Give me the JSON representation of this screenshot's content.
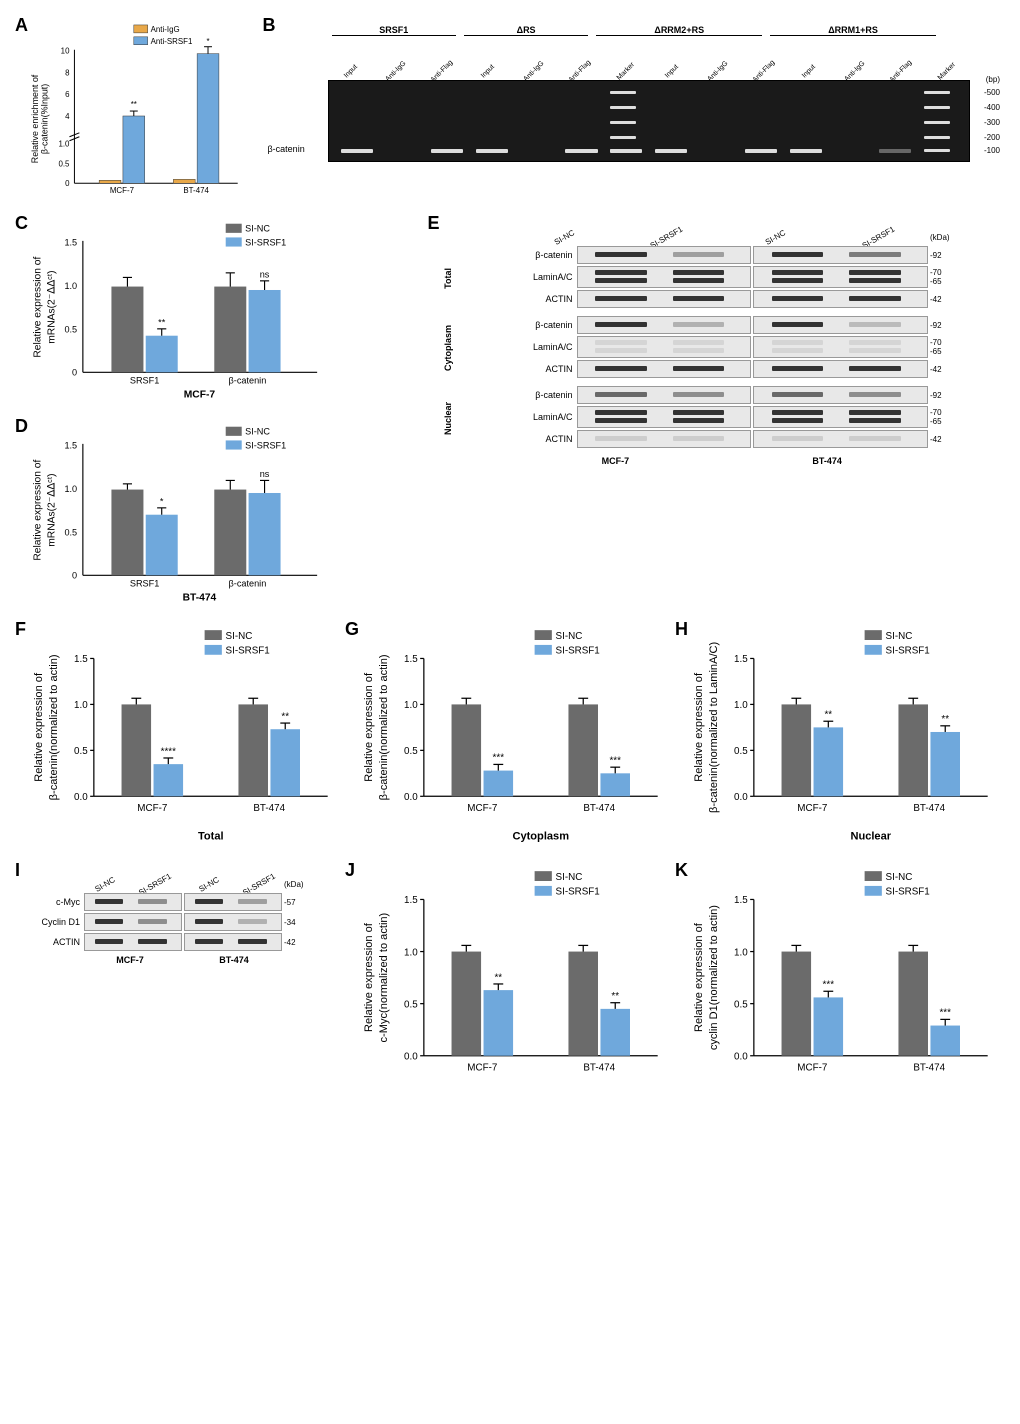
{
  "colors": {
    "orange": "#e8a849",
    "blue": "#6fa8dc",
    "gray": "#6b6b6b",
    "darkblue": "#5b9bd5"
  },
  "panelA": {
    "label": "A",
    "ylabel": "Relative enrichment of\nβ-catenin(%Input)",
    "legend": [
      "Anti-IgG",
      "Anti-SRSF1"
    ],
    "categories": [
      "MCF-7",
      "BT-474"
    ],
    "igg": [
      0.08,
      0.12
    ],
    "srsf1": [
      4.2,
      9.8
    ],
    "srsf1_err": [
      0.3,
      1.2
    ],
    "sig": [
      "**",
      "*"
    ],
    "ylim": 10,
    "break_low": 1.0,
    "break_high": 4.0
  },
  "panelB": {
    "label": "B",
    "groups": [
      "SRSF1",
      "ΔRS",
      "ΔRRM2+RS",
      "ΔRRM1+RS"
    ],
    "lanes": [
      "Input",
      "Anti-IgG",
      "Anti-Flag"
    ],
    "target": "β-catenin",
    "ladder": [
      "500",
      "400",
      "300",
      "200",
      "100"
    ],
    "unit": "(bp)"
  },
  "panelC": {
    "label": "C",
    "ylabel": "Relative expression of\nmRNAs(2^-ΔΔct)",
    "title": "MCF-7",
    "legend": [
      "SI-NC",
      "SI-SRSF1"
    ],
    "categories": [
      "SRSF1",
      "β-catenin"
    ],
    "nc": [
      1.0,
      1.0
    ],
    "si": [
      0.42,
      0.95
    ],
    "sig": [
      "**",
      "ns"
    ],
    "ylim": 1.5
  },
  "panelD": {
    "label": "D",
    "ylabel": "Relative expression of\nmRNAs(2^-ΔΔct)",
    "title": "BT-474",
    "legend": [
      "SI-NC",
      "SI-SRSF1"
    ],
    "categories": [
      "SRSF1",
      "β-catenin"
    ],
    "nc": [
      1.0,
      1.0
    ],
    "si": [
      0.7,
      0.96
    ],
    "sig": [
      "*",
      "ns"
    ],
    "ylim": 1.5
  },
  "panelE": {
    "label": "E",
    "conditions": [
      "SI-NC",
      "SI-SRSF1",
      "SI-NC",
      "SI-SRSF1"
    ],
    "fractions": [
      "Total",
      "Cytoplasm",
      "Nuclear"
    ],
    "proteins": [
      "β-catenin",
      "LaminA/C",
      "ACTIN"
    ],
    "mw": {
      "β-catenin": "-92",
      "LaminA/C_hi": "-70",
      "LaminA/C_lo": "-65",
      "ACTIN": "-42"
    },
    "unit": "(kDa)",
    "cells": [
      "MCF-7",
      "BT-474"
    ]
  },
  "panelF": {
    "label": "F",
    "ylabel": "Relative expression of\nβ-catenin(normalized to actin)",
    "title": "Total",
    "legend": [
      "SI-NC",
      "SI-SRSF1"
    ],
    "categories": [
      "MCF-7",
      "BT-474"
    ],
    "nc": [
      1.0,
      1.0
    ],
    "si": [
      0.35,
      0.73
    ],
    "sig": [
      "****",
      "**"
    ],
    "ylim": 1.5
  },
  "panelG": {
    "label": "G",
    "ylabel": "Relative expression of\nβ-catenin(normalized to actin)",
    "title": "Cytoplasm",
    "legend": [
      "SI-NC",
      "SI-SRSF1"
    ],
    "categories": [
      "MCF-7",
      "BT-474"
    ],
    "nc": [
      1.0,
      1.0
    ],
    "si": [
      0.28,
      0.25
    ],
    "sig": [
      "***",
      "***"
    ],
    "ylim": 1.5
  },
  "panelH": {
    "label": "H",
    "ylabel": "Relative expression of\nβ-catenin(normalized to LaminA/C)",
    "title": "Nuclear",
    "legend": [
      "SI-NC",
      "SI-SRSF1"
    ],
    "categories": [
      "MCF-7",
      "BT-474"
    ],
    "nc": [
      1.0,
      1.0
    ],
    "si": [
      0.75,
      0.7
    ],
    "sig": [
      "**",
      "**"
    ],
    "ylim": 1.5
  },
  "panelI": {
    "label": "I",
    "conditions": [
      "SI-NC",
      "SI-SRSF1",
      "SI-NC",
      "SI-SRSF1"
    ],
    "proteins": [
      "c-Myc",
      "Cyclin D1",
      "ACTIN"
    ],
    "mw": {
      "c-Myc": "-57",
      "Cyclin D1": "-34",
      "ACTIN": "-42"
    },
    "unit": "(kDa)",
    "cells": [
      "MCF-7",
      "BT-474"
    ]
  },
  "panelJ": {
    "label": "J",
    "ylabel": "Relative expression of\nc-Myc(normalized to actin)",
    "legend": [
      "SI-NC",
      "SI-SRSF1"
    ],
    "categories": [
      "MCF-7",
      "BT-474"
    ],
    "nc": [
      1.0,
      1.0
    ],
    "si": [
      0.63,
      0.45
    ],
    "sig": [
      "**",
      "**"
    ],
    "ylim": 1.5
  },
  "panelK": {
    "label": "K",
    "ylabel": "Relative expression of\ncyclin D1(normalized to actin)",
    "legend": [
      "SI-NC",
      "SI-SRSF1"
    ],
    "categories": [
      "MCF-7",
      "BT-474"
    ],
    "nc": [
      1.0,
      1.0
    ],
    "si": [
      0.56,
      0.29
    ],
    "sig": [
      "***",
      "***"
    ],
    "ylim": 1.5
  }
}
